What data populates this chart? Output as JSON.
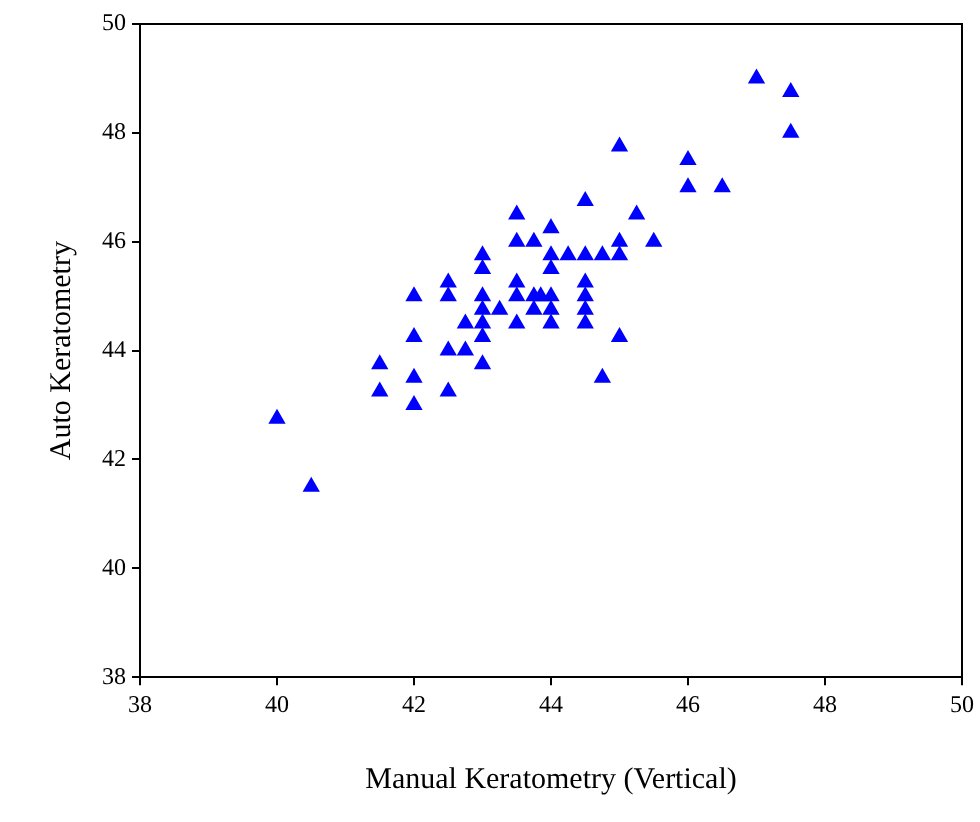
{
  "chart_data": {
    "type": "scatter",
    "xlabel": "Manual Keratometry (Vertical)",
    "ylabel": "Auto Keratometry",
    "x": [
      40,
      40.5,
      41.5,
      41.5,
      42,
      42,
      42,
      42,
      42.5,
      42.5,
      42.5,
      42.5,
      42.75,
      42.75,
      43,
      43,
      43,
      43,
      43,
      43,
      43,
      43.25,
      43.5,
      43.5,
      43.5,
      43.5,
      43.5,
      43.75,
      43.75,
      43.75,
      43.85,
      44,
      44,
      44,
      44,
      44,
      44,
      44.25,
      44.5,
      44.5,
      44.5,
      44.5,
      44.5,
      44.5,
      44.75,
      44.75,
      45,
      45,
      45,
      45,
      45.25,
      45.5,
      46,
      46,
      46.5,
      47,
      47.5,
      47.5
    ],
    "series": [
      {
        "color": "#0000ff",
        "values": [
          42.75,
          41.5,
          43.75,
          43.25,
          45,
          44.25,
          43.5,
          43,
          45.25,
          45,
          44,
          43.25,
          44.5,
          44,
          45.75,
          45.5,
          45,
          44.75,
          44.5,
          44.25,
          43.75,
          44.75,
          46.5,
          46,
          45.25,
          45,
          44.5,
          46,
          45,
          44.75,
          45,
          46.25,
          45.75,
          45.5,
          45,
          44.75,
          44.5,
          45.75,
          46.75,
          45.75,
          45.25,
          45,
          44.75,
          44.5,
          45.75,
          43.5,
          47.75,
          46,
          45.75,
          44.25,
          46.5,
          46,
          47.5,
          47,
          47,
          49,
          48.75,
          48
        ]
      }
    ],
    "xlim": [
      38,
      50
    ],
    "xticks": [
      38,
      40,
      42,
      44,
      46,
      48,
      50
    ],
    "ylim": [
      38,
      50
    ],
    "yticks": [
      38,
      40,
      42,
      44,
      46,
      48,
      50
    ],
    "marker": "triangle",
    "grid": false,
    "legend": false
  }
}
